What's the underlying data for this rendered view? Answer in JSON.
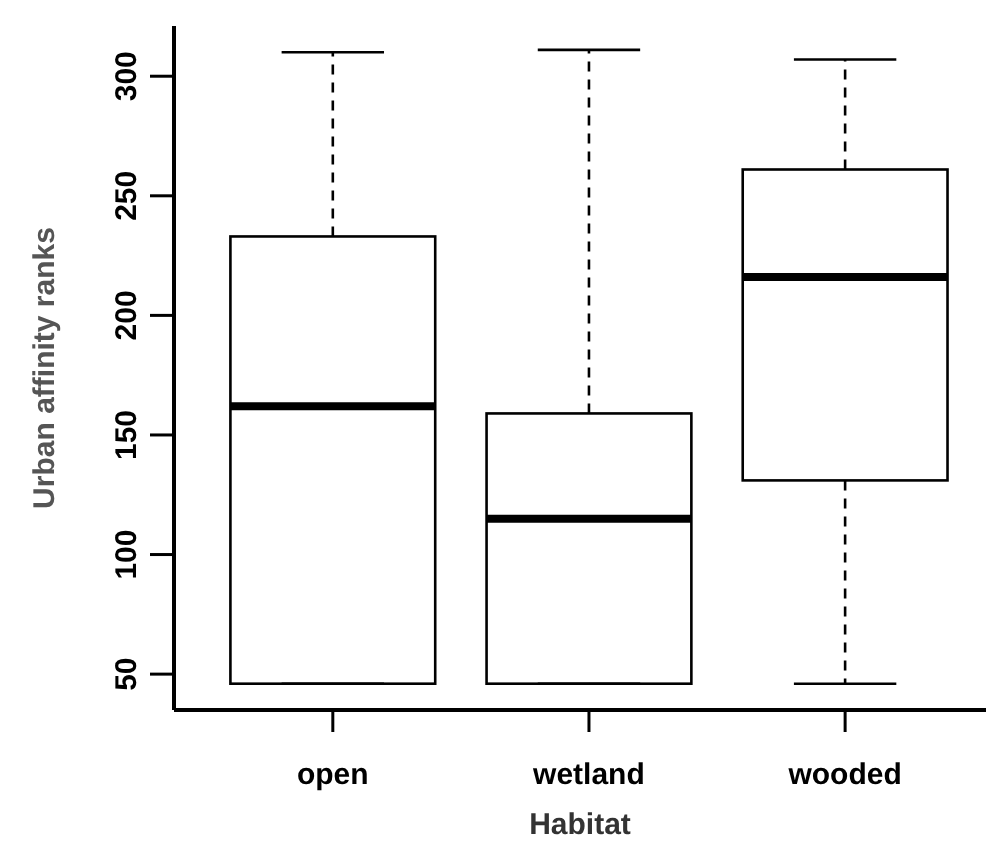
{
  "chart_data": {
    "type": "box",
    "xlabel": "Habitat",
    "ylabel": "Urban affinity ranks",
    "categories": [
      "open",
      "wetland",
      "wooded"
    ],
    "boxes": [
      {
        "low": 46,
        "q1": 46,
        "median": 162,
        "q3": 233,
        "high": 310
      },
      {
        "low": 46,
        "q1": 46,
        "median": 115,
        "q3": 159,
        "high": 311
      },
      {
        "low": 46,
        "q1": 131,
        "median": 216,
        "q3": 261,
        "high": 307
      }
    ],
    "ylim": [
      35,
      321
    ],
    "yticks": [
      50,
      100,
      150,
      200,
      250,
      300
    ],
    "grid": false
  }
}
